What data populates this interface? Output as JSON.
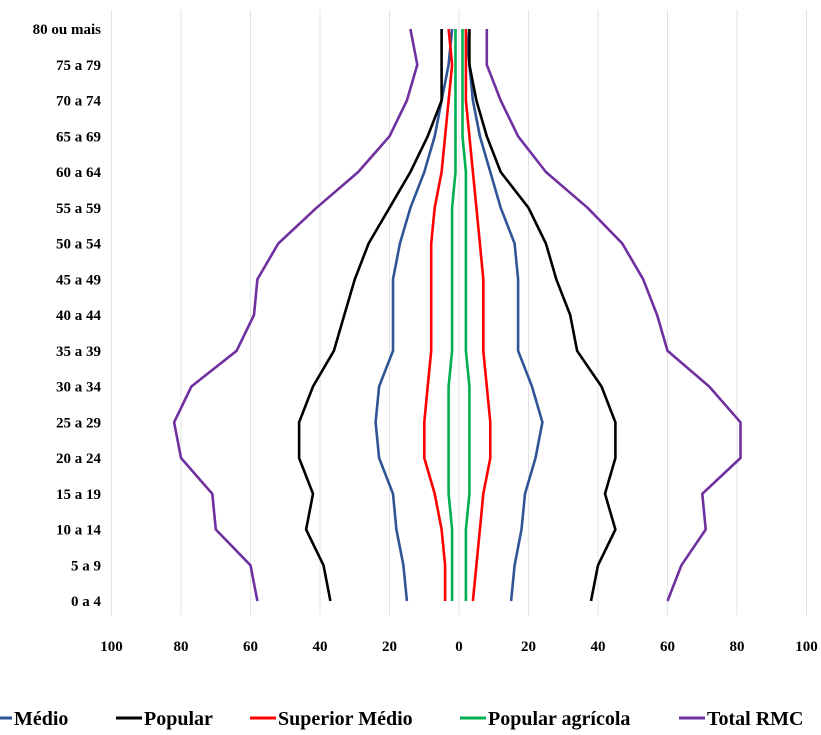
{
  "chart_data": {
    "type": "line",
    "title": "",
    "xlabel": "",
    "ylabel": "",
    "categories": [
      "0 a 4",
      "5 a 9",
      "10 a 14",
      "15 a 19",
      "20 a 24",
      "25 a 29",
      "30 a 34",
      "35 a 39",
      "40 a 44",
      "45 a 49",
      "50 a 54",
      "55 a 59",
      "60 a 64",
      "65 a 69",
      "70 a 74",
      "75 a 79",
      "80 ou mais"
    ],
    "x_ticks": [
      "100",
      "80",
      "60",
      "40",
      "20",
      "0",
      "20",
      "40",
      "60",
      "80",
      "100"
    ],
    "xlim": [
      -100,
      100
    ],
    "grid": true,
    "legend_position": "bottom",
    "series": [
      {
        "name": "Médio",
        "color": "#2f5597",
        "left": [
          15,
          16,
          18,
          19,
          23,
          24,
          23,
          19,
          19,
          19,
          17,
          14,
          10,
          7,
          5,
          3,
          2
        ],
        "right": [
          15,
          16,
          18,
          19,
          22,
          24,
          21,
          17,
          17,
          17,
          16,
          12,
          9,
          6,
          4,
          3,
          2
        ]
      },
      {
        "name": "Popular",
        "color": "#000000",
        "left": [
          37,
          39,
          44,
          42,
          46,
          46,
          42,
          36,
          33,
          30,
          26,
          20,
          14,
          9,
          5,
          5,
          5
        ],
        "right": [
          38,
          40,
          45,
          42,
          45,
          45,
          41,
          34,
          32,
          28,
          25,
          20,
          12,
          8,
          5,
          3,
          3
        ]
      },
      {
        "name": "Superior Médio",
        "color": "#ff0000",
        "left": [
          4,
          4,
          5,
          7,
          10,
          10,
          9,
          8,
          8,
          8,
          8,
          7,
          5,
          4,
          3,
          2,
          3
        ],
        "right": [
          4,
          5,
          6,
          7,
          9,
          9,
          8,
          7,
          7,
          7,
          6,
          5,
          4,
          3,
          2,
          2,
          2
        ]
      },
      {
        "name": "Popular agrícola",
        "color": "#00b050",
        "left": [
          2,
          2,
          2,
          3,
          3,
          3,
          3,
          2,
          2,
          2,
          2,
          2,
          1,
          1,
          1,
          1,
          1
        ],
        "right": [
          2,
          2,
          2,
          3,
          3,
          3,
          3,
          2,
          2,
          2,
          2,
          2,
          2,
          1,
          1,
          1,
          1
        ]
      },
      {
        "name": "Total RMC",
        "color": "#7030a0",
        "left": [
          58,
          60,
          70,
          71,
          80,
          82,
          77,
          64,
          59,
          58,
          52,
          41,
          29,
          20,
          15,
          12,
          14
        ],
        "right": [
          60,
          64,
          71,
          70,
          81,
          81,
          72,
          60,
          57,
          53,
          47,
          37,
          25,
          17,
          12,
          8,
          8
        ]
      }
    ]
  }
}
